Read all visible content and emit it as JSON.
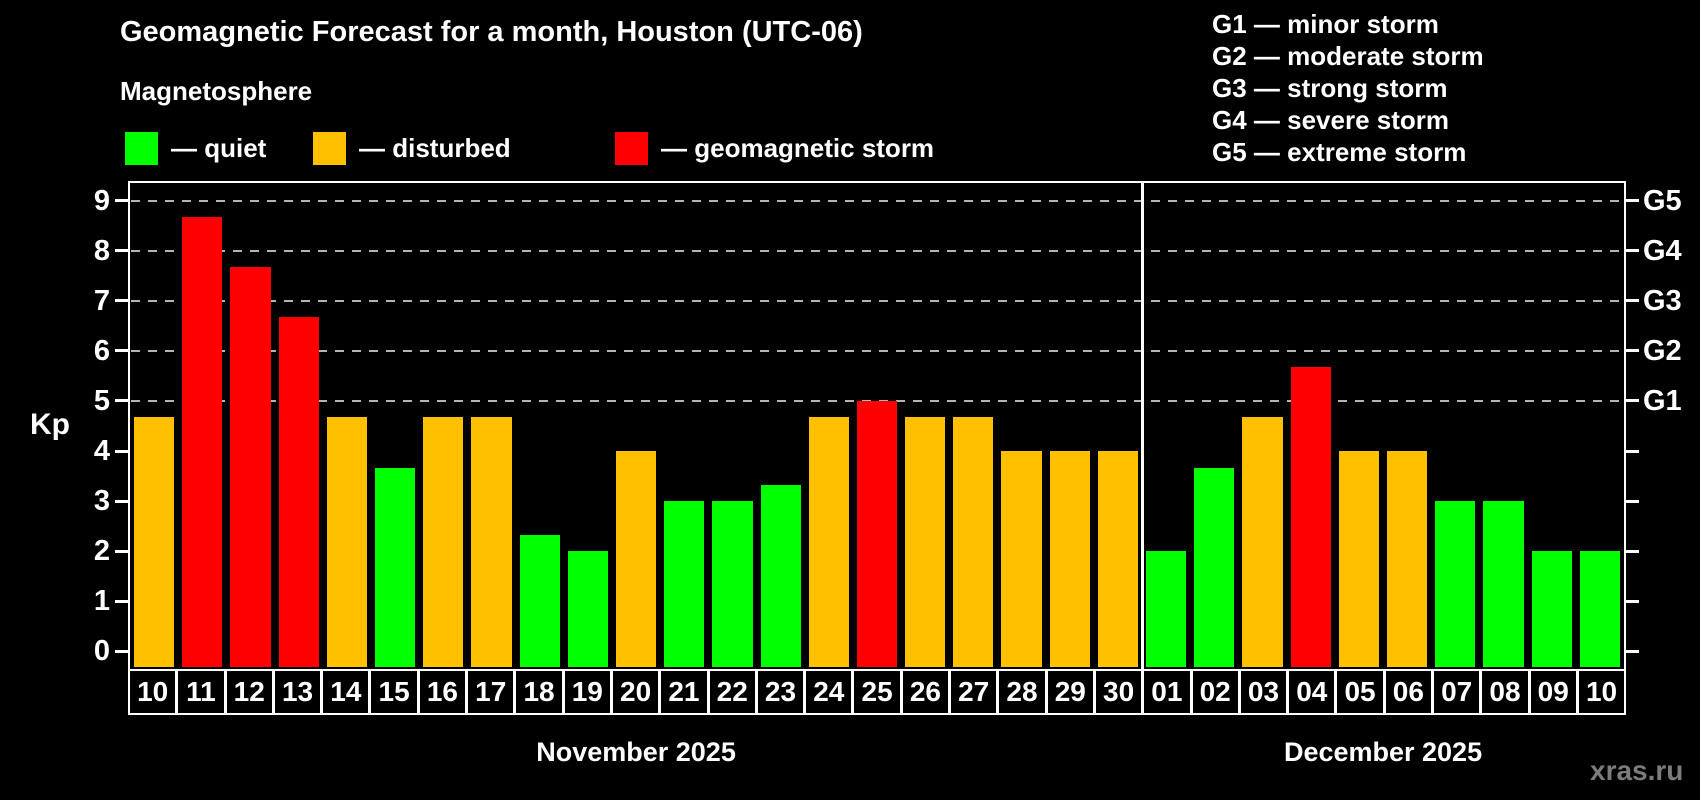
{
  "header": {
    "title": "Geomagnetic Forecast for a month, Houston (UTC-06)",
    "subtitle": "Magnetosphere"
  },
  "legend": {
    "items": [
      {
        "key": "quiet",
        "label": "— quiet",
        "color": "#00ff00"
      },
      {
        "key": "disturbed",
        "label": "— disturbed",
        "color": "#ffc000"
      },
      {
        "key": "storm",
        "label": "— geomagnetic storm",
        "color": "#ff0000"
      }
    ]
  },
  "storm_scale_legend": {
    "items": [
      {
        "label": "G1 — minor storm"
      },
      {
        "label": "G2 — moderate storm"
      },
      {
        "label": "G3 — strong storm"
      },
      {
        "label": "G4 — severe storm"
      },
      {
        "label": "G5 — extreme storm"
      }
    ]
  },
  "watermark": "xras.ru",
  "chart_data": {
    "type": "bar",
    "ylabel": "Kp",
    "ylim": [
      0,
      9
    ],
    "yticks": [
      0,
      1,
      2,
      3,
      4,
      5,
      6,
      7,
      8,
      9
    ],
    "grid_values": [
      5,
      6,
      7,
      8,
      9
    ],
    "right_axis_labels": [
      {
        "value": 5,
        "label": "G1"
      },
      {
        "value": 6,
        "label": "G2"
      },
      {
        "value": 7,
        "label": "G3"
      },
      {
        "value": 8,
        "label": "G4"
      },
      {
        "value": 9,
        "label": "G5"
      }
    ],
    "axis_colors": {
      "border": "#ffffff",
      "grid": "#b4b4b4",
      "text": "#ffffff"
    },
    "months": [
      {
        "label": "November 2025",
        "days": [
          {
            "day": "10",
            "kp": 4.67,
            "status": "disturbed"
          },
          {
            "day": "11",
            "kp": 8.67,
            "status": "storm"
          },
          {
            "day": "12",
            "kp": 7.67,
            "status": "storm"
          },
          {
            "day": "13",
            "kp": 6.67,
            "status": "storm"
          },
          {
            "day": "14",
            "kp": 4.67,
            "status": "disturbed"
          },
          {
            "day": "15",
            "kp": 3.67,
            "status": "quiet"
          },
          {
            "day": "16",
            "kp": 4.67,
            "status": "disturbed"
          },
          {
            "day": "17",
            "kp": 4.67,
            "status": "disturbed"
          },
          {
            "day": "18",
            "kp": 2.33,
            "status": "quiet"
          },
          {
            "day": "19",
            "kp": 2.0,
            "status": "quiet"
          },
          {
            "day": "20",
            "kp": 4.0,
            "status": "disturbed"
          },
          {
            "day": "21",
            "kp": 3.0,
            "status": "quiet"
          },
          {
            "day": "22",
            "kp": 3.0,
            "status": "quiet"
          },
          {
            "day": "23",
            "kp": 3.33,
            "status": "quiet"
          },
          {
            "day": "24",
            "kp": 4.67,
            "status": "disturbed"
          },
          {
            "day": "25",
            "kp": 5.0,
            "status": "storm"
          },
          {
            "day": "26",
            "kp": 4.67,
            "status": "disturbed"
          },
          {
            "day": "27",
            "kp": 4.67,
            "status": "disturbed"
          },
          {
            "day": "28",
            "kp": 4.0,
            "status": "disturbed"
          },
          {
            "day": "29",
            "kp": 4.0,
            "status": "disturbed"
          },
          {
            "day": "30",
            "kp": 4.0,
            "status": "disturbed"
          }
        ]
      },
      {
        "label": "December 2025",
        "days": [
          {
            "day": "01",
            "kp": 2.0,
            "status": "quiet"
          },
          {
            "day": "02",
            "kp": 3.67,
            "status": "quiet"
          },
          {
            "day": "03",
            "kp": 4.67,
            "status": "disturbed"
          },
          {
            "day": "04",
            "kp": 5.67,
            "status": "storm"
          },
          {
            "day": "05",
            "kp": 4.0,
            "status": "disturbed"
          },
          {
            "day": "06",
            "kp": 4.0,
            "status": "disturbed"
          },
          {
            "day": "07",
            "kp": 3.0,
            "status": "quiet"
          },
          {
            "day": "08",
            "kp": 3.0,
            "status": "quiet"
          },
          {
            "day": "09",
            "kp": 2.0,
            "status": "quiet"
          },
          {
            "day": "10",
            "kp": 2.0,
            "status": "quiet"
          }
        ]
      }
    ]
  }
}
